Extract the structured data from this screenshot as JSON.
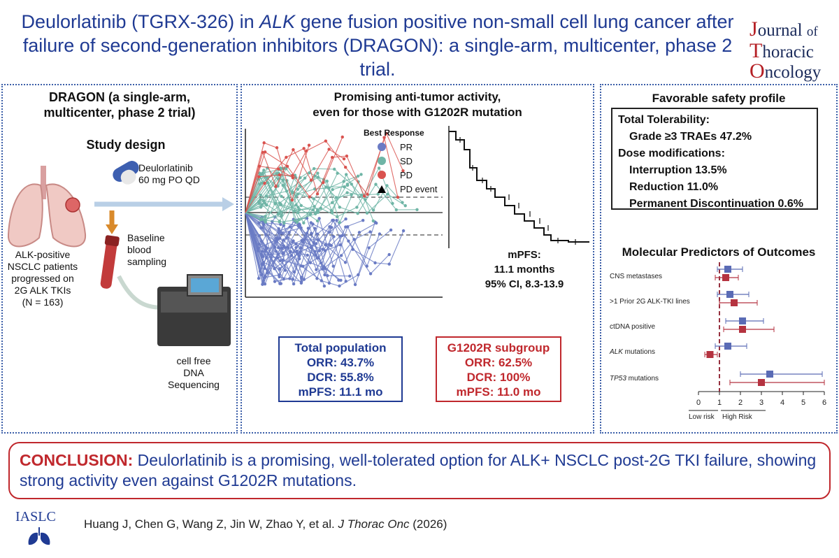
{
  "header": {
    "title_pre": "Deulorlatinib (TGRX-326) in ",
    "title_italic": "ALK",
    "title_post": " gene fusion positive non-small cell lung cancer after failure of second-generation inhibitors (DRAGON): a single-arm, multicenter, phase 2 trial.",
    "journal_j": "J",
    "journal_1": "ournal",
    "journal_of": "of",
    "journal_t": "T",
    "journal_2": "horacic",
    "journal_o": "O",
    "journal_3": "ncology"
  },
  "left_panel": {
    "heading_1": "DRAGON (a single-arm,",
    "heading_2": "multicenter, phase 2 trial)",
    "study_design": "Study design",
    "drug_1": "Deulorlatinib",
    "drug_2": "60 mg PO QD",
    "patients": [
      "ALK-positive",
      "NSCLC patients",
      "progressed on",
      "2G ALK TKIs",
      "(N = 163)"
    ],
    "sampling": [
      "Baseline",
      "blood",
      "sampling"
    ],
    "sequencing": [
      "cell free",
      "DNA",
      "Sequencing"
    ]
  },
  "middle_panel": {
    "heading_1": "Promising anti-tumor activity,",
    "heading_2": "even for those with G1202R mutation",
    "legend_title": "Best Response",
    "legend": [
      {
        "label": "PR",
        "color": "#6a7bc4"
      },
      {
        "label": "SD",
        "color": "#6fb5a6"
      },
      {
        "label": "PD",
        "color": "#d9534f"
      },
      {
        "label": "PD event",
        "color": "#000000"
      }
    ],
    "km_label_1": "mPFS:",
    "km_label_2": "11.1 months",
    "km_label_3": "95% CI, 8.3-13.9",
    "total": {
      "title": "Total population",
      "orr": "ORR: 43.7%",
      "dcr": "DCR: 55.8%",
      "mpfs": "mPFS: 11.1 mo"
    },
    "g1202r": {
      "title": "G1202R subgroup",
      "orr": "ORR: 62.5%",
      "dcr": "DCR: 100%",
      "mpfs": "mPFS: 11.0 mo"
    }
  },
  "right_panel": {
    "heading": "Favorable safety profile",
    "safety": {
      "total_tol": "Total Tolerability:",
      "grade3": "Grade ≥3 TRAEs 47.2%",
      "dose_mod": "Dose modifications:",
      "interruption": "Interruption 13.5%",
      "reduction": "Reduction 11.0%",
      "discontinuation": "Permanent Discontinuation 0.6%"
    },
    "predictors_heading": "Molecular Predictors of Outcomes",
    "forest_rows": [
      "CNS metastases",
      ">1 Prior 2G ALK-TKI lines",
      "ctDNA positive",
      "ALK mutations",
      "TP53 mutations"
    ],
    "forest_italic": [
      " mutations",
      "ALK",
      "TP53"
    ],
    "axis_ticks": [
      "0",
      "1",
      "2",
      "3",
      "4",
      "5",
      "6"
    ],
    "low_risk": "Low risk",
    "high_risk": "High Risk"
  },
  "forest_data": {
    "rows": [
      {
        "name": "CNS metastases",
        "blue": {
          "est": 1.4,
          "lo": 0.9,
          "hi": 2.1
        },
        "red": {
          "est": 1.3,
          "lo": 0.8,
          "hi": 1.9
        }
      },
      {
        "name": ">1 Prior 2G ALK-TKI lines",
        "blue": {
          "est": 1.5,
          "lo": 0.9,
          "hi": 2.4
        },
        "red": {
          "est": 1.7,
          "lo": 1.0,
          "hi": 2.8
        }
      },
      {
        "name": "ctDNA positive",
        "blue": {
          "est": 2.1,
          "lo": 1.3,
          "hi": 3.1
        },
        "red": {
          "est": 2.1,
          "lo": 1.2,
          "hi": 3.6
        }
      },
      {
        "name": "ALK mutations",
        "blue": {
          "est": 1.4,
          "lo": 0.8,
          "hi": 2.3
        },
        "red": {
          "est": 0.55,
          "lo": 0.3,
          "hi": 0.9
        }
      },
      {
        "name": "TP53 mutations",
        "blue": {
          "est": 3.4,
          "lo": 2.0,
          "hi": 5.9
        },
        "red": {
          "est": 3.0,
          "lo": 1.5,
          "hi": 6.0
        }
      }
    ],
    "xlim": [
      0,
      6
    ],
    "ref": 1,
    "blue": "#5a6bb5",
    "red": "#b53340"
  },
  "conclusion": {
    "lead": "CONCLUSION:",
    "body": " Deulorlatinib is a promising, well-tolerated option for ALK+ NSCLC post-2G TKI failure, showing strong activity even against G1202R mutations."
  },
  "footer": {
    "logo": "IASLC",
    "citation_authors": "Huang J, Chen G, Wang Z, Jin W, Zhao Y, et al. ",
    "citation_journal": "J Thorac Onc",
    "citation_year": " (2026)"
  }
}
